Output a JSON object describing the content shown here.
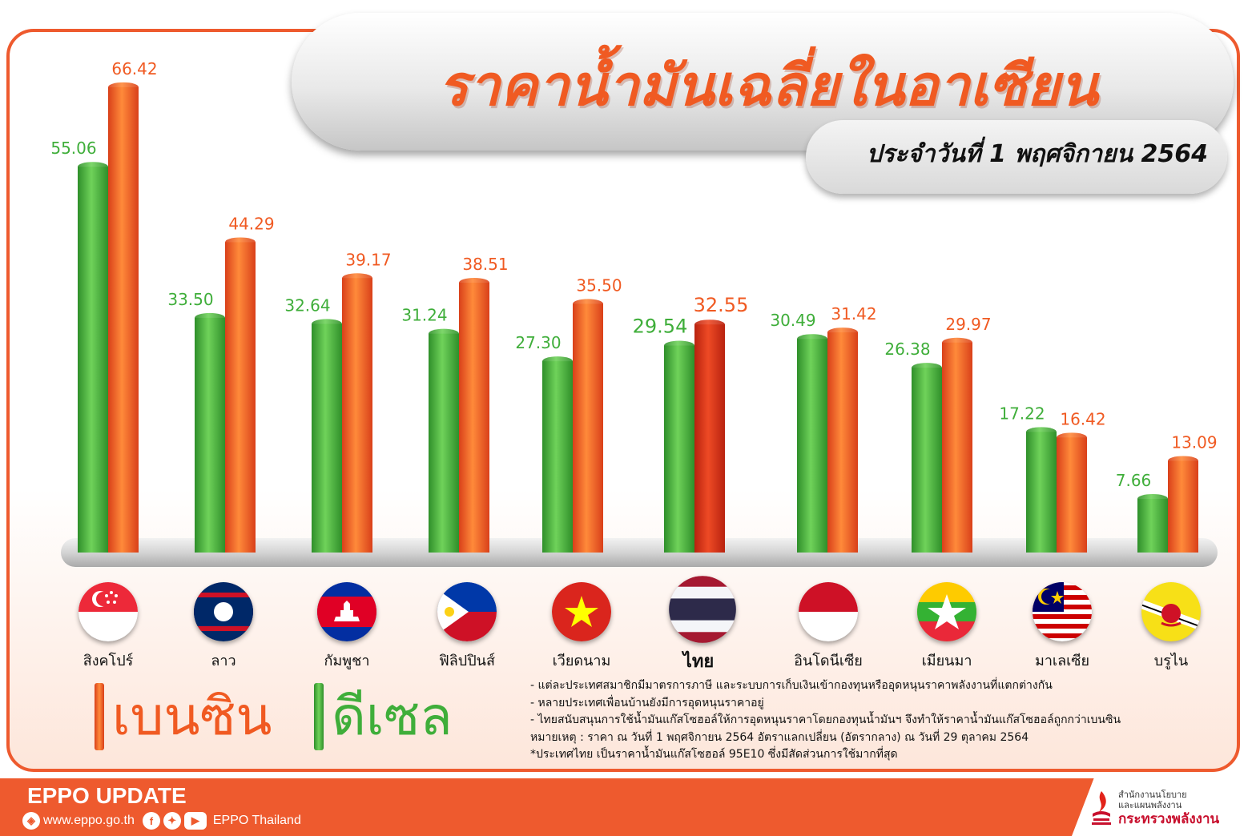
{
  "header": {
    "title": "ราคาน้ำมันเฉลี่ยในอาเซียน",
    "subtitle": "ประจำวันที่ 1 พฤศจิกายน 2564"
  },
  "chart_data": {
    "type": "bar",
    "categories": [
      "สิงคโปร์",
      "ลาว",
      "กัมพูชา",
      "ฟิลิปปินส์",
      "เวียดนาม",
      "ไทย",
      "อินโดนีเซีย",
      "เมียนมา",
      "มาเลเซีย",
      "บรูไน"
    ],
    "series": [
      {
        "name": "ดีเซล",
        "color": "#3fae3a",
        "values": [
          55.06,
          33.5,
          32.64,
          31.24,
          27.3,
          29.54,
          30.49,
          26.38,
          17.22,
          7.66
        ],
        "labels": [
          "55.06",
          "33.50",
          "32.64",
          "31.24",
          "27.30",
          "29.54",
          "30.49",
          "26.38",
          "17.22",
          "7.66"
        ]
      },
      {
        "name": "เบนซิน",
        "color": "#f05a22",
        "values": [
          66.42,
          44.29,
          39.17,
          38.51,
          35.5,
          32.55,
          31.42,
          29.97,
          16.42,
          13.09
        ],
        "labels": [
          "66.42",
          "44.29",
          "39.17",
          "38.51",
          "35.50",
          "32.55",
          "31.42",
          "29.97",
          "16.42",
          "13.09"
        ]
      }
    ],
    "highlight_category": "ไทย",
    "grid": false
  },
  "flags": [
    "singapore-flag-icon",
    "laos-flag-icon",
    "cambodia-flag-icon",
    "philippines-flag-icon",
    "vietnam-flag-icon",
    "thailand-flag-icon",
    "indonesia-flag-icon",
    "myanmar-flag-icon",
    "malaysia-flag-icon",
    "brunei-flag-icon"
  ],
  "legend": {
    "benzin": {
      "label": "เบนซิน",
      "color": "#f05a22"
    },
    "diesel": {
      "label": "ดีเซล",
      "color": "#3fae3a"
    }
  },
  "notes": [
    "- แต่ละประเทศสมาชิกมีมาตรการภาษี และระบบการเก็บเงินเข้ากองทุนหรืออุดหนุนราคาพลังงานที่แตกต่างกัน",
    "- หลายประเทศเพื่อนบ้านยังมีการอุดหนุนราคาอยู่",
    "- ไทยสนับสนุนการใช้น้ำมันแก๊สโซฮอล์ให้การอุดหนุนราคาโดยกองทุนน้ำมันฯ จึงทำให้ราคาน้ำมันแก๊สโซฮอล์ถูกกว่าเบนซิน",
    "หมายเหตุ : ราคา ณ วันที่ 1 พฤศจิกายน 2564 อัตราแลกเปลี่ยน (อัตรากลาง) ณ วันที่ 29 ตุลาคม 2564",
    "*ประเทศไทย เป็นราคาน้ำมันแก๊สโซฮอล์ 95E10 ซึ่งมีสัดส่วนการใช้มากที่สุด"
  ],
  "footer": {
    "brand": "EPPO UPDATE",
    "website": "www.eppo.go.th",
    "social": "EPPO Thailand",
    "org_line1": "สำนักงานนโยบาย",
    "org_line2": "และแผนพลังงาน",
    "org_line3": "กระทรวงพลังงาน"
  }
}
